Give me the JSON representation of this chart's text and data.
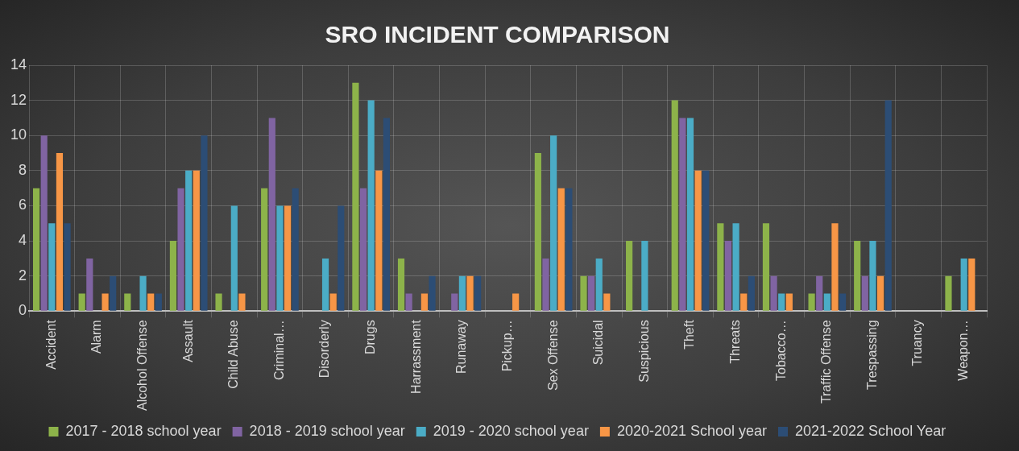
{
  "chart_data": {
    "type": "bar",
    "title": "SRO INCIDENT COMPARISON",
    "categories": [
      "Accident",
      "Alarm",
      "Alcohol Offense",
      "Assault",
      "Child Abuse",
      "Criminal…",
      "Disorderly",
      "Drugs",
      "Harrassment",
      "Runaway",
      "Pickup…",
      "Sex Offense",
      "Suicidal",
      "Suspicious",
      "Theft",
      "Threats",
      "Tobacco…",
      "Traffic Offense",
      "Trespassing",
      "Truancy",
      "Weapon…"
    ],
    "series": [
      {
        "name": "2017 - 2018 school year",
        "color": "#8db34a",
        "values": [
          7,
          1,
          1,
          4,
          1,
          7,
          0,
          13,
          3,
          0,
          0,
          9,
          2,
          4,
          12,
          5,
          5,
          1,
          4,
          0,
          2
        ]
      },
      {
        "name": "2018 - 2019 school year",
        "color": "#8064a2",
        "values": [
          10,
          3,
          0,
          7,
          0,
          11,
          0,
          7,
          1,
          1,
          0,
          3,
          2,
          0,
          11,
          4,
          2,
          2,
          2,
          0,
          0
        ]
      },
      {
        "name": "2019 - 2020 school year",
        "color": "#4bacc6",
        "values": [
          5,
          0,
          2,
          8,
          6,
          6,
          3,
          12,
          0,
          2,
          0,
          10,
          3,
          4,
          11,
          5,
          1,
          1,
          4,
          0,
          3
        ]
      },
      {
        "name": "2020-2021 School year",
        "color": "#f79646",
        "values": [
          9,
          1,
          1,
          8,
          1,
          6,
          1,
          8,
          1,
          2,
          1,
          7,
          1,
          0,
          8,
          1,
          1,
          5,
          2,
          0,
          3
        ]
      },
      {
        "name": "2021-2022 School Year",
        "color": "#2c4d75",
        "values": [
          5,
          2,
          1,
          10,
          0,
          7,
          6,
          11,
          2,
          2,
          0,
          7,
          0,
          0,
          8,
          2,
          0,
          1,
          12,
          0,
          0
        ]
      }
    ],
    "ylim": [
      0,
      14
    ],
    "yticks": [
      0,
      2,
      4,
      6,
      8,
      10,
      12,
      14
    ],
    "grid": true,
    "legend": "bottom"
  }
}
